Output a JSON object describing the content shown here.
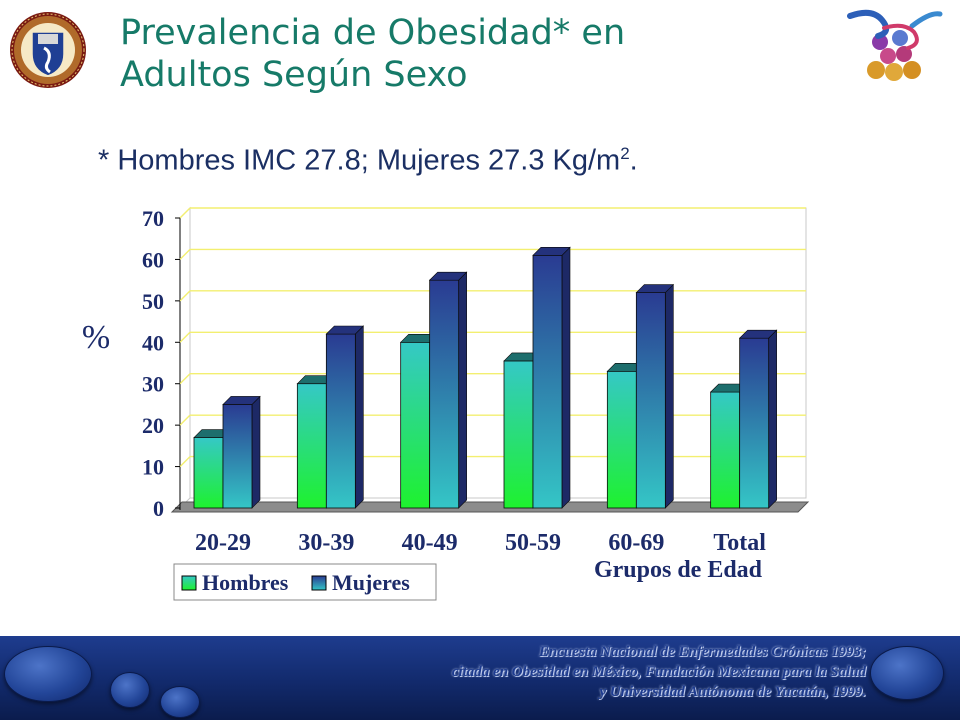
{
  "slide": {
    "title": "Prevalencia de Obesidad* en Adultos Según Sexo",
    "subtitle_main": "* Hombres  IMC 27.8; Mujeres 27.3 Kg/m",
    "subtitle_sup": "2",
    "subtitle_end": ".",
    "source_lines": [
      "Encuesta Nacional de Enfermedades Crónicas 1993;",
      "citada en Obesidad en México, Fundación Mexicana para la Salud",
      "y Universidad Autónoma de Yucatán, 1999."
    ]
  },
  "chart_data": {
    "type": "bar",
    "categories": [
      "20-29",
      "30-39",
      "40-49",
      "50-59",
      "60-69",
      "Total"
    ],
    "series": [
      {
        "name": "Hombres",
        "values": [
          17,
          30,
          40,
          35.5,
          33,
          28
        ]
      },
      {
        "name": "Mujeres",
        "values": [
          25,
          42,
          55,
          61,
          52,
          41
        ]
      }
    ],
    "ylabel": "%",
    "xlabel": "Grupos de Edad",
    "ylim": [
      0,
      70
    ],
    "yticks": [
      "0",
      "10",
      "20",
      "30",
      "40",
      "50",
      "60",
      "70"
    ],
    "grid": true,
    "legend": "bottom-left",
    "colors": {
      "hombres_top": "#35c8c6",
      "hombres_bottom": "#1ef22e",
      "mujeres_top": "#2a3b92",
      "mujeres_bottom": "#34c6c6",
      "gridline": "#f3ef70",
      "plot_border": "#c9c9c9"
    }
  }
}
